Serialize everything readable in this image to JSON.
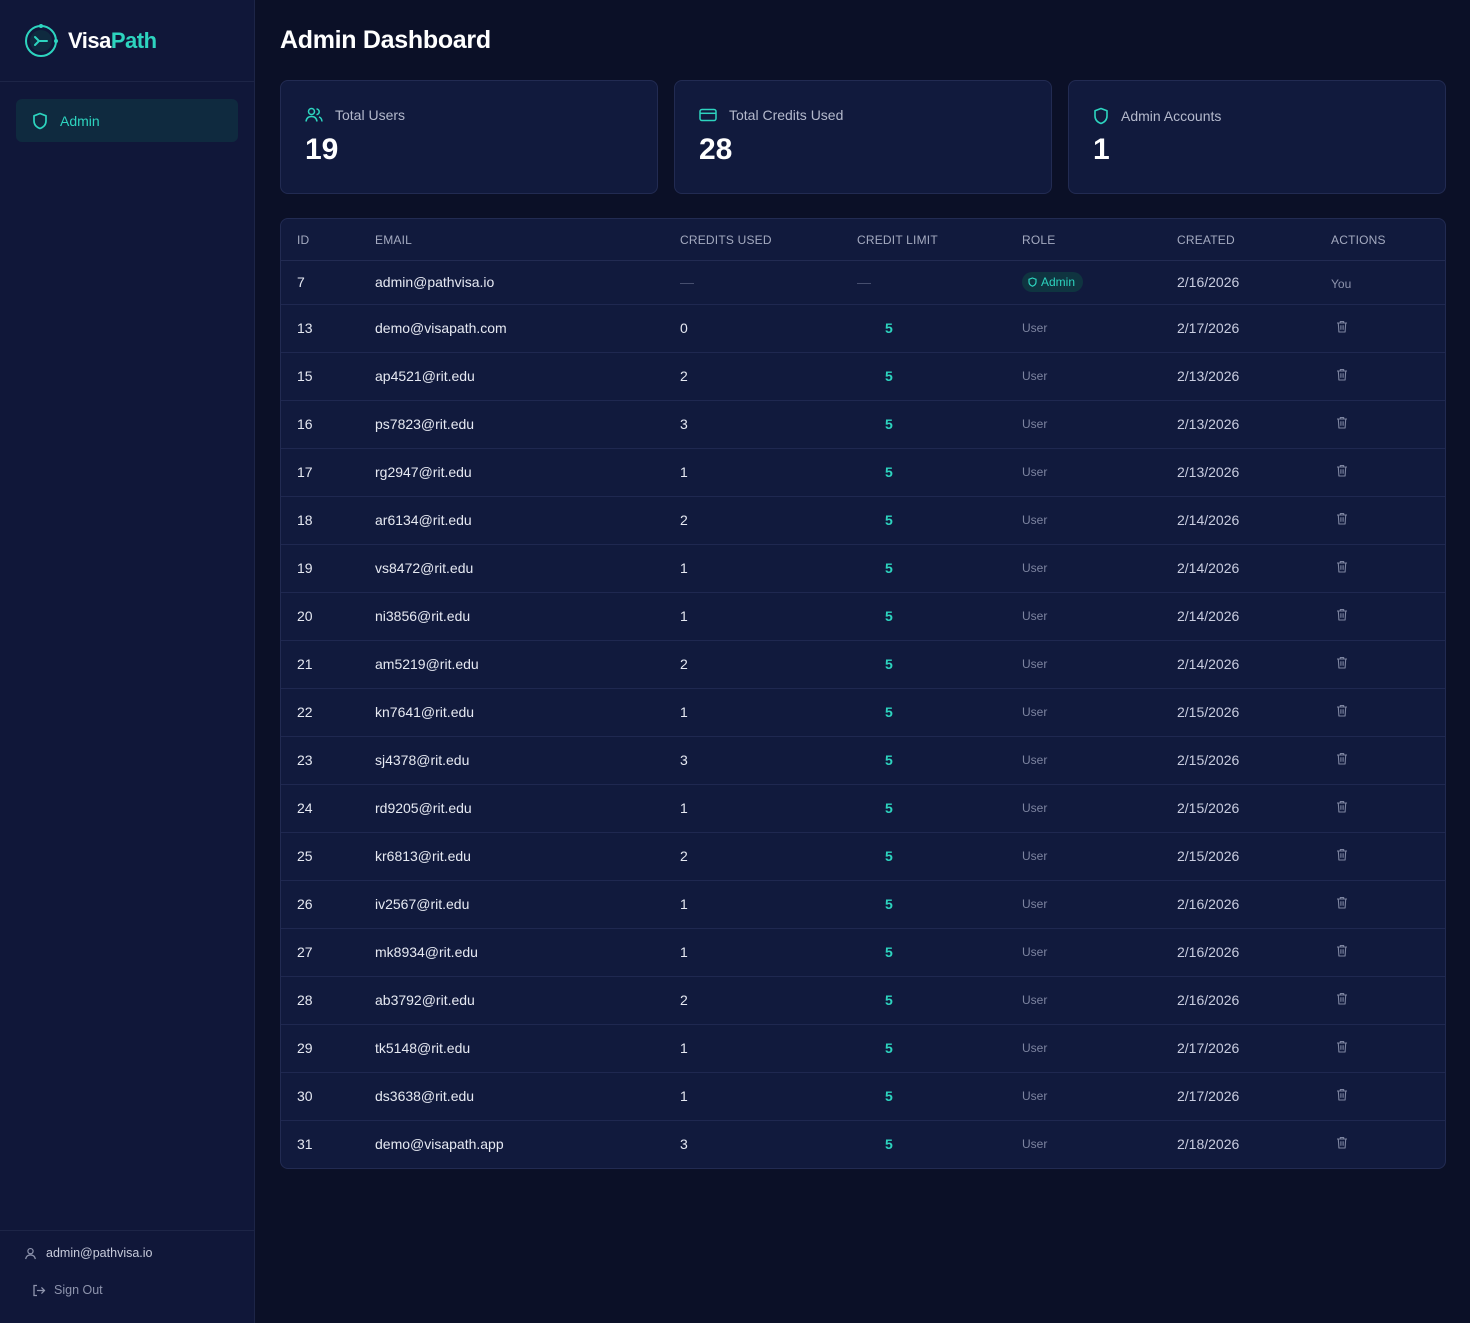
{
  "brand": {
    "name_part1": "Visa",
    "name_part2": "Path"
  },
  "sidebar": {
    "nav": [
      {
        "label": "Admin",
        "icon": "shield-icon",
        "active": true
      }
    ],
    "user_email": "admin@pathvisa.io",
    "signout_label": "Sign Out"
  },
  "page": {
    "title": "Admin Dashboard"
  },
  "stats": [
    {
      "label": "Total Users",
      "value": "19",
      "icon": "users-icon"
    },
    {
      "label": "Total Credits Used",
      "value": "28",
      "icon": "credit-card-icon"
    },
    {
      "label": "Admin Accounts",
      "value": "1",
      "icon": "shield-icon"
    }
  ],
  "table": {
    "columns": [
      "ID",
      "Email",
      "Credits Used",
      "Credit Limit",
      "Role",
      "Created",
      "Actions"
    ],
    "rows": [
      {
        "id": "7",
        "email": "admin@pathvisa.io",
        "used": "—",
        "limit": "—",
        "role": "Admin",
        "created": "2/16/2026",
        "action": "You"
      },
      {
        "id": "13",
        "email": "demo@visapath.com",
        "used": "0",
        "limit": "5",
        "role": "User",
        "created": "2/17/2026",
        "action": "delete"
      },
      {
        "id": "15",
        "email": "ap4521@rit.edu",
        "used": "2",
        "limit": "5",
        "role": "User",
        "created": "2/13/2026",
        "action": "delete"
      },
      {
        "id": "16",
        "email": "ps7823@rit.edu",
        "used": "3",
        "limit": "5",
        "role": "User",
        "created": "2/13/2026",
        "action": "delete"
      },
      {
        "id": "17",
        "email": "rg2947@rit.edu",
        "used": "1",
        "limit": "5",
        "role": "User",
        "created": "2/13/2026",
        "action": "delete"
      },
      {
        "id": "18",
        "email": "ar6134@rit.edu",
        "used": "2",
        "limit": "5",
        "role": "User",
        "created": "2/14/2026",
        "action": "delete"
      },
      {
        "id": "19",
        "email": "vs8472@rit.edu",
        "used": "1",
        "limit": "5",
        "role": "User",
        "created": "2/14/2026",
        "action": "delete"
      },
      {
        "id": "20",
        "email": "ni3856@rit.edu",
        "used": "1",
        "limit": "5",
        "role": "User",
        "created": "2/14/2026",
        "action": "delete"
      },
      {
        "id": "21",
        "email": "am5219@rit.edu",
        "used": "2",
        "limit": "5",
        "role": "User",
        "created": "2/14/2026",
        "action": "delete"
      },
      {
        "id": "22",
        "email": "kn7641@rit.edu",
        "used": "1",
        "limit": "5",
        "role": "User",
        "created": "2/15/2026",
        "action": "delete"
      },
      {
        "id": "23",
        "email": "sj4378@rit.edu",
        "used": "3",
        "limit": "5",
        "role": "User",
        "created": "2/15/2026",
        "action": "delete"
      },
      {
        "id": "24",
        "email": "rd9205@rit.edu",
        "used": "1",
        "limit": "5",
        "role": "User",
        "created": "2/15/2026",
        "action": "delete"
      },
      {
        "id": "25",
        "email": "kr6813@rit.edu",
        "used": "2",
        "limit": "5",
        "role": "User",
        "created": "2/15/2026",
        "action": "delete"
      },
      {
        "id": "26",
        "email": "iv2567@rit.edu",
        "used": "1",
        "limit": "5",
        "role": "User",
        "created": "2/16/2026",
        "action": "delete"
      },
      {
        "id": "27",
        "email": "mk8934@rit.edu",
        "used": "1",
        "limit": "5",
        "role": "User",
        "created": "2/16/2026",
        "action": "delete"
      },
      {
        "id": "28",
        "email": "ab3792@rit.edu",
        "used": "2",
        "limit": "5",
        "role": "User",
        "created": "2/16/2026",
        "action": "delete"
      },
      {
        "id": "29",
        "email": "tk5148@rit.edu",
        "used": "1",
        "limit": "5",
        "role": "User",
        "created": "2/17/2026",
        "action": "delete"
      },
      {
        "id": "30",
        "email": "ds3638@rit.edu",
        "used": "1",
        "limit": "5",
        "role": "User",
        "created": "2/17/2026",
        "action": "delete"
      },
      {
        "id": "31",
        "email": "demo@visapath.app",
        "used": "3",
        "limit": "5",
        "role": "User",
        "created": "2/18/2026",
        "action": "delete"
      }
    ]
  },
  "colors": {
    "accent": "#2dd4bf",
    "background": "#0b1027",
    "card": "#111a3d"
  }
}
